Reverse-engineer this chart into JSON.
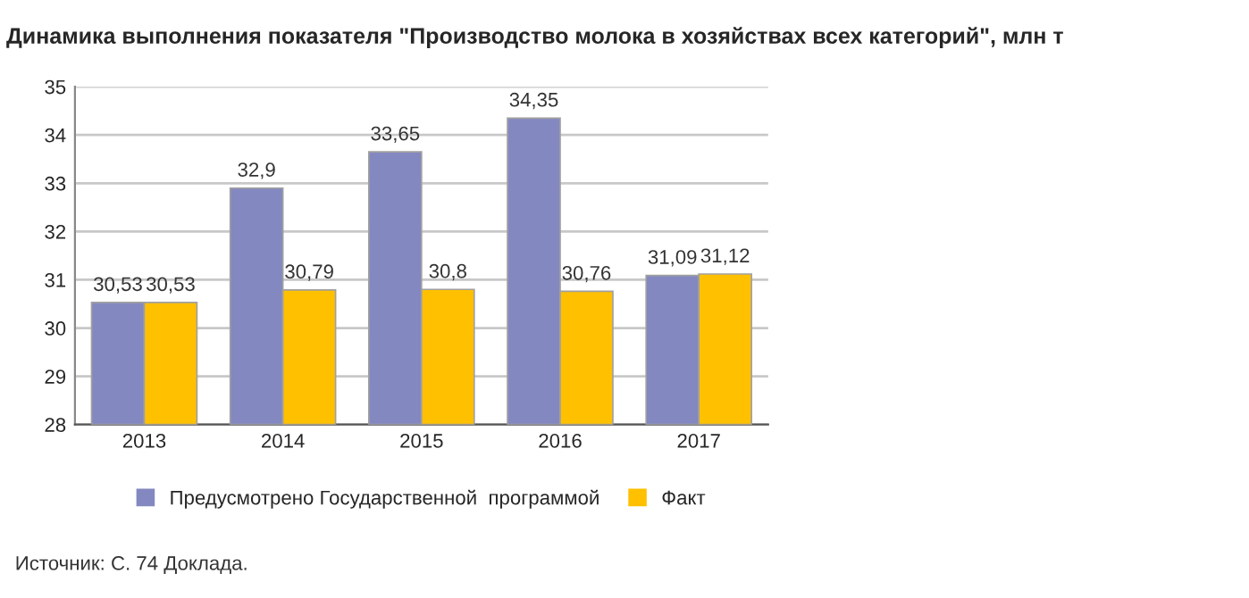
{
  "chart_data": {
    "type": "bar",
    "title": "Динамика выполнения показателя \"Производство молока в хозяйствах всех категорий\", млн т",
    "categories": [
      "2013",
      "2014",
      "2015",
      "2016",
      "2017"
    ],
    "series": [
      {
        "name": "Предусмотрено Государственной  программой",
        "color": "#8488c0",
        "values": [
          30.53,
          32.9,
          33.65,
          34.35,
          31.09
        ],
        "value_labels": [
          "30,53",
          "32,9",
          "33,65",
          "34,35",
          "31,09"
        ]
      },
      {
        "name": "Факт",
        "color": "#ffc000",
        "values": [
          30.53,
          30.79,
          30.8,
          30.76,
          31.12
        ],
        "value_labels": [
          "30,53",
          "30,79",
          "30,8",
          "30,76",
          "31,12"
        ]
      }
    ],
    "ylim": [
      28,
      35
    ],
    "yticks": [
      28,
      29,
      30,
      31,
      32,
      33,
      34,
      35
    ],
    "grid": "y",
    "legend": "bottom",
    "annotations": [
      "Источник: С. 74 Доклада."
    ]
  }
}
